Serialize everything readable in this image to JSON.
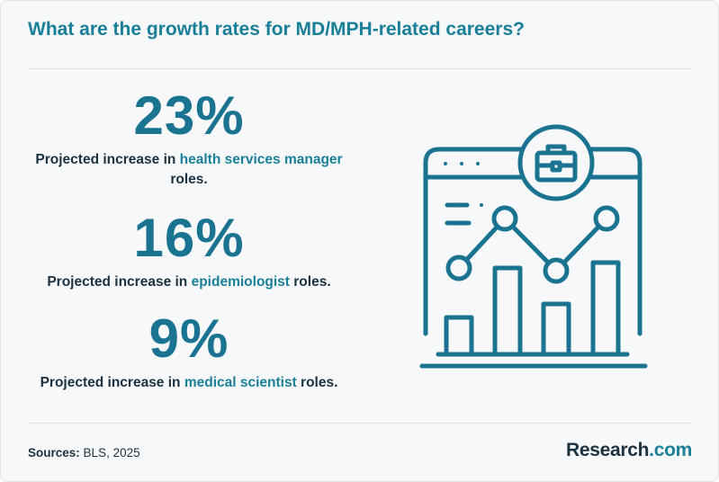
{
  "title": "What are the growth rates for MD/MPH-related careers?",
  "stats": [
    {
      "value": "23%",
      "desc_before": "Projected increase in ",
      "desc_highlight": "health services manager",
      "desc_after": " roles."
    },
    {
      "value": "16%",
      "desc_before": "Projected increase in ",
      "desc_highlight": "epidemiologist",
      "desc_after": " roles."
    },
    {
      "value": "9%",
      "desc_before": "Projected increase in ",
      "desc_highlight": "medical scientist",
      "desc_after": " roles."
    }
  ],
  "footer": {
    "sources_label": "Sources:",
    "sources_value": "BLS, 2025",
    "logo_main": "Research",
    "logo_suffix": ".com"
  },
  "colors": {
    "accent": "#1a7f98",
    "dark_accent": "#1a7391",
    "text": "#1d3240",
    "background": "#f6f8f9"
  },
  "illustration": {
    "icons": [
      "browser-window-icon",
      "briefcase-icon",
      "bar-chart-icon",
      "trend-line-icon"
    ]
  }
}
